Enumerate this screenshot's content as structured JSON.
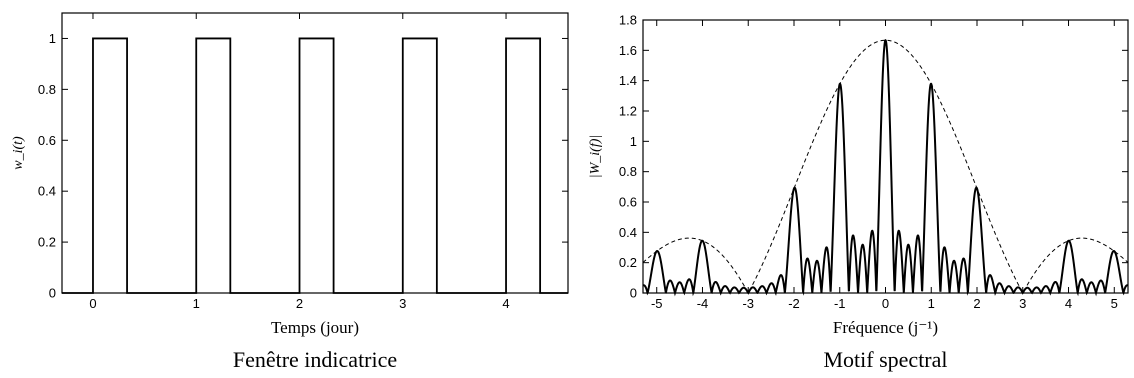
{
  "chart_data": [
    {
      "type": "line",
      "caption": "Fenêtre indicatrice",
      "xlabel": "Temps (jour)",
      "ylabel": "w_i(t)",
      "xlim": [
        -0.3,
        4.6
      ],
      "ylim": [
        0,
        1.1
      ],
      "xticks": [
        0,
        1,
        2,
        3,
        4
      ],
      "yticks": [
        0,
        0.2,
        0.4,
        0.6,
        0.8,
        1
      ],
      "grid": false,
      "series": [
        {
          "style": "solid",
          "x": [
            -0.3,
            0,
            0,
            0.33,
            0.33,
            1,
            1,
            1.33,
            1.33,
            2,
            2,
            2.33,
            2.33,
            3,
            3,
            3.33,
            3.33,
            4,
            4,
            4.33,
            4.33,
            4.6
          ],
          "y": [
            0,
            0,
            1,
            1,
            0,
            0,
            1,
            1,
            0,
            0,
            1,
            1,
            0,
            0,
            1,
            1,
            0,
            0,
            1,
            1,
            0,
            0
          ]
        }
      ]
    },
    {
      "type": "line",
      "caption": "Motif spectral",
      "xlabel": "Fréquence (j⁻¹)",
      "ylabel": "|W_i(f)|",
      "xlim": [
        -5.3,
        5.3
      ],
      "ylim": [
        0,
        1.8
      ],
      "xticks": [
        -5,
        -4,
        -3,
        -2,
        -1,
        0,
        1,
        2,
        3,
        4,
        5
      ],
      "yticks": [
        0,
        0.2,
        0.4,
        0.6,
        0.8,
        1,
        1.2,
        1.4,
        1.6,
        1.8
      ],
      "grid": false,
      "series": [
        {
          "style": "solid",
          "model": "spectral window of 5 rectangular pulses",
          "params": {
            "n_pulses": 5,
            "duration": 0.3333,
            "period": 1
          },
          "peak_value": 1.667
        },
        {
          "style": "dashed",
          "model": "single-pulse envelope",
          "params": {
            "duration": 0.3333,
            "scale": 5
          },
          "peak_value": 1.667
        }
      ]
    }
  ]
}
